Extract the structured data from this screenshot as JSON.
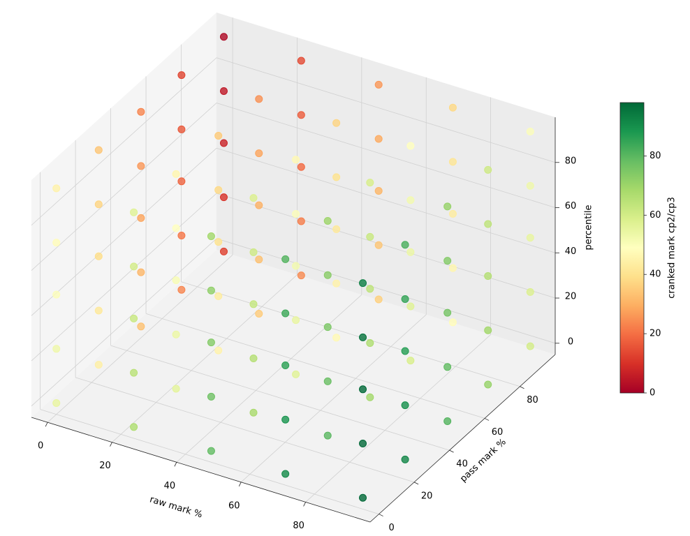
{
  "chart_data": {
    "type": "scatter3d",
    "xlabel": "raw mark %",
    "ylabel": "pass mark %",
    "zlabel": "percentile",
    "xlim": [
      -5,
      100
    ],
    "ylim": [
      -5,
      100
    ],
    "zlim": [
      -5,
      100
    ],
    "xticks": [
      0,
      20,
      40,
      60,
      80
    ],
    "yticks": [
      0,
      20,
      40,
      60,
      80
    ],
    "zticks": [
      0,
      20,
      40,
      60,
      80
    ],
    "grid": true,
    "colormap": "RdYlGn",
    "colorbar": {
      "label": "cranked mark cp2/cp3",
      "lim": [
        0,
        98
      ],
      "ticks": [
        0,
        20,
        40,
        60,
        80
      ]
    },
    "x": [
      0,
      0,
      0,
      0,
      0,
      0,
      0,
      0,
      0,
      0,
      0,
      0,
      0,
      0,
      0,
      0,
      0,
      0,
      0,
      0,
      0,
      0,
      0,
      0,
      0,
      24,
      24,
      24,
      24,
      24,
      24,
      24,
      24,
      24,
      24,
      24,
      24,
      24,
      24,
      24,
      24,
      24,
      24,
      24,
      24,
      24,
      24,
      24,
      24,
      24,
      48,
      48,
      48,
      48,
      48,
      48,
      48,
      48,
      48,
      48,
      48,
      48,
      48,
      48,
      48,
      48,
      48,
      48,
      48,
      48,
      48,
      48,
      48,
      48,
      48,
      71,
      71,
      71,
      71,
      71,
      71,
      71,
      71,
      71,
      71,
      71,
      71,
      71,
      71,
      71,
      71,
      71,
      71,
      71,
      71,
      71,
      71,
      71,
      71,
      71,
      95,
      95,
      95,
      95,
      95,
      95,
      95,
      95,
      95,
      95,
      95,
      95,
      95,
      95,
      95,
      95,
      95,
      95,
      95,
      95,
      95,
      95,
      95,
      95,
      95
    ],
    "y": [
      0,
      0,
      0,
      0,
      0,
      24,
      24,
      24,
      24,
      24,
      48,
      48,
      48,
      48,
      48,
      71,
      71,
      71,
      71,
      71,
      95,
      95,
      95,
      95,
      95,
      0,
      0,
      0,
      0,
      0,
      24,
      24,
      24,
      24,
      24,
      48,
      48,
      48,
      48,
      48,
      71,
      71,
      71,
      71,
      71,
      95,
      95,
      95,
      95,
      95,
      0,
      0,
      0,
      0,
      0,
      24,
      24,
      24,
      24,
      24,
      48,
      48,
      48,
      48,
      48,
      71,
      71,
      71,
      71,
      71,
      95,
      95,
      95,
      95,
      95,
      0,
      0,
      0,
      0,
      0,
      24,
      24,
      24,
      24,
      24,
      48,
      48,
      48,
      48,
      48,
      71,
      71,
      71,
      71,
      71,
      95,
      95,
      95,
      95,
      95,
      0,
      0,
      0,
      0,
      0,
      24,
      24,
      24,
      24,
      24,
      48,
      48,
      48,
      48,
      48,
      71,
      71,
      71,
      71,
      71,
      95,
      95,
      95,
      95,
      95
    ],
    "z": [
      0,
      24,
      48,
      71,
      95,
      0,
      24,
      48,
      71,
      95,
      0,
      24,
      48,
      71,
      95,
      0,
      24,
      48,
      71,
      95,
      0,
      24,
      48,
      71,
      95,
      0,
      24,
      48,
      71,
      95,
      0,
      24,
      48,
      71,
      95,
      0,
      24,
      48,
      71,
      95,
      0,
      24,
      48,
      71,
      95,
      0,
      24,
      48,
      71,
      95,
      0,
      24,
      48,
      71,
      95,
      0,
      24,
      48,
      71,
      95,
      0,
      24,
      48,
      71,
      95,
      0,
      24,
      48,
      71,
      95,
      0,
      24,
      48,
      71,
      95,
      0,
      24,
      48,
      71,
      95,
      0,
      24,
      48,
      71,
      95,
      0,
      24,
      48,
      71,
      95,
      0,
      24,
      48,
      71,
      95,
      0,
      24,
      48,
      71,
      95,
      0,
      24,
      48,
      71,
      95,
      0,
      24,
      48,
      71,
      95,
      0,
      24,
      48,
      71,
      95,
      0,
      24,
      48,
      71,
      95,
      0,
      24,
      48,
      71,
      95
    ],
    "values": [
      55,
      53,
      50,
      48,
      45,
      44,
      42,
      39,
      37,
      34,
      33,
      31,
      28,
      26,
      23,
      23,
      21,
      18,
      16,
      13,
      12,
      10,
      7,
      5,
      2,
      67,
      65,
      62,
      60,
      57,
      56,
      54,
      51,
      49,
      46,
      45,
      43,
      40,
      38,
      35,
      35,
      33,
      30,
      28,
      25,
      24,
      22,
      19,
      17,
      14,
      79,
      77,
      74,
      72,
      69,
      68,
      66,
      63,
      61,
      58,
      57,
      55,
      52,
      50,
      47,
      47,
      45,
      42,
      40,
      37,
      36,
      34,
      31,
      29,
      26,
      91,
      89,
      86,
      84,
      81,
      80,
      78,
      75,
      73,
      70,
      69,
      67,
      64,
      62,
      59,
      59,
      57,
      54,
      52,
      49,
      48,
      46,
      43,
      41,
      38,
      98,
      98,
      98,
      96,
      93,
      92,
      90,
      87,
      85,
      82,
      81,
      79,
      76,
      74,
      71,
      71,
      69,
      66,
      64,
      61,
      60,
      58,
      55,
      53,
      50
    ]
  }
}
